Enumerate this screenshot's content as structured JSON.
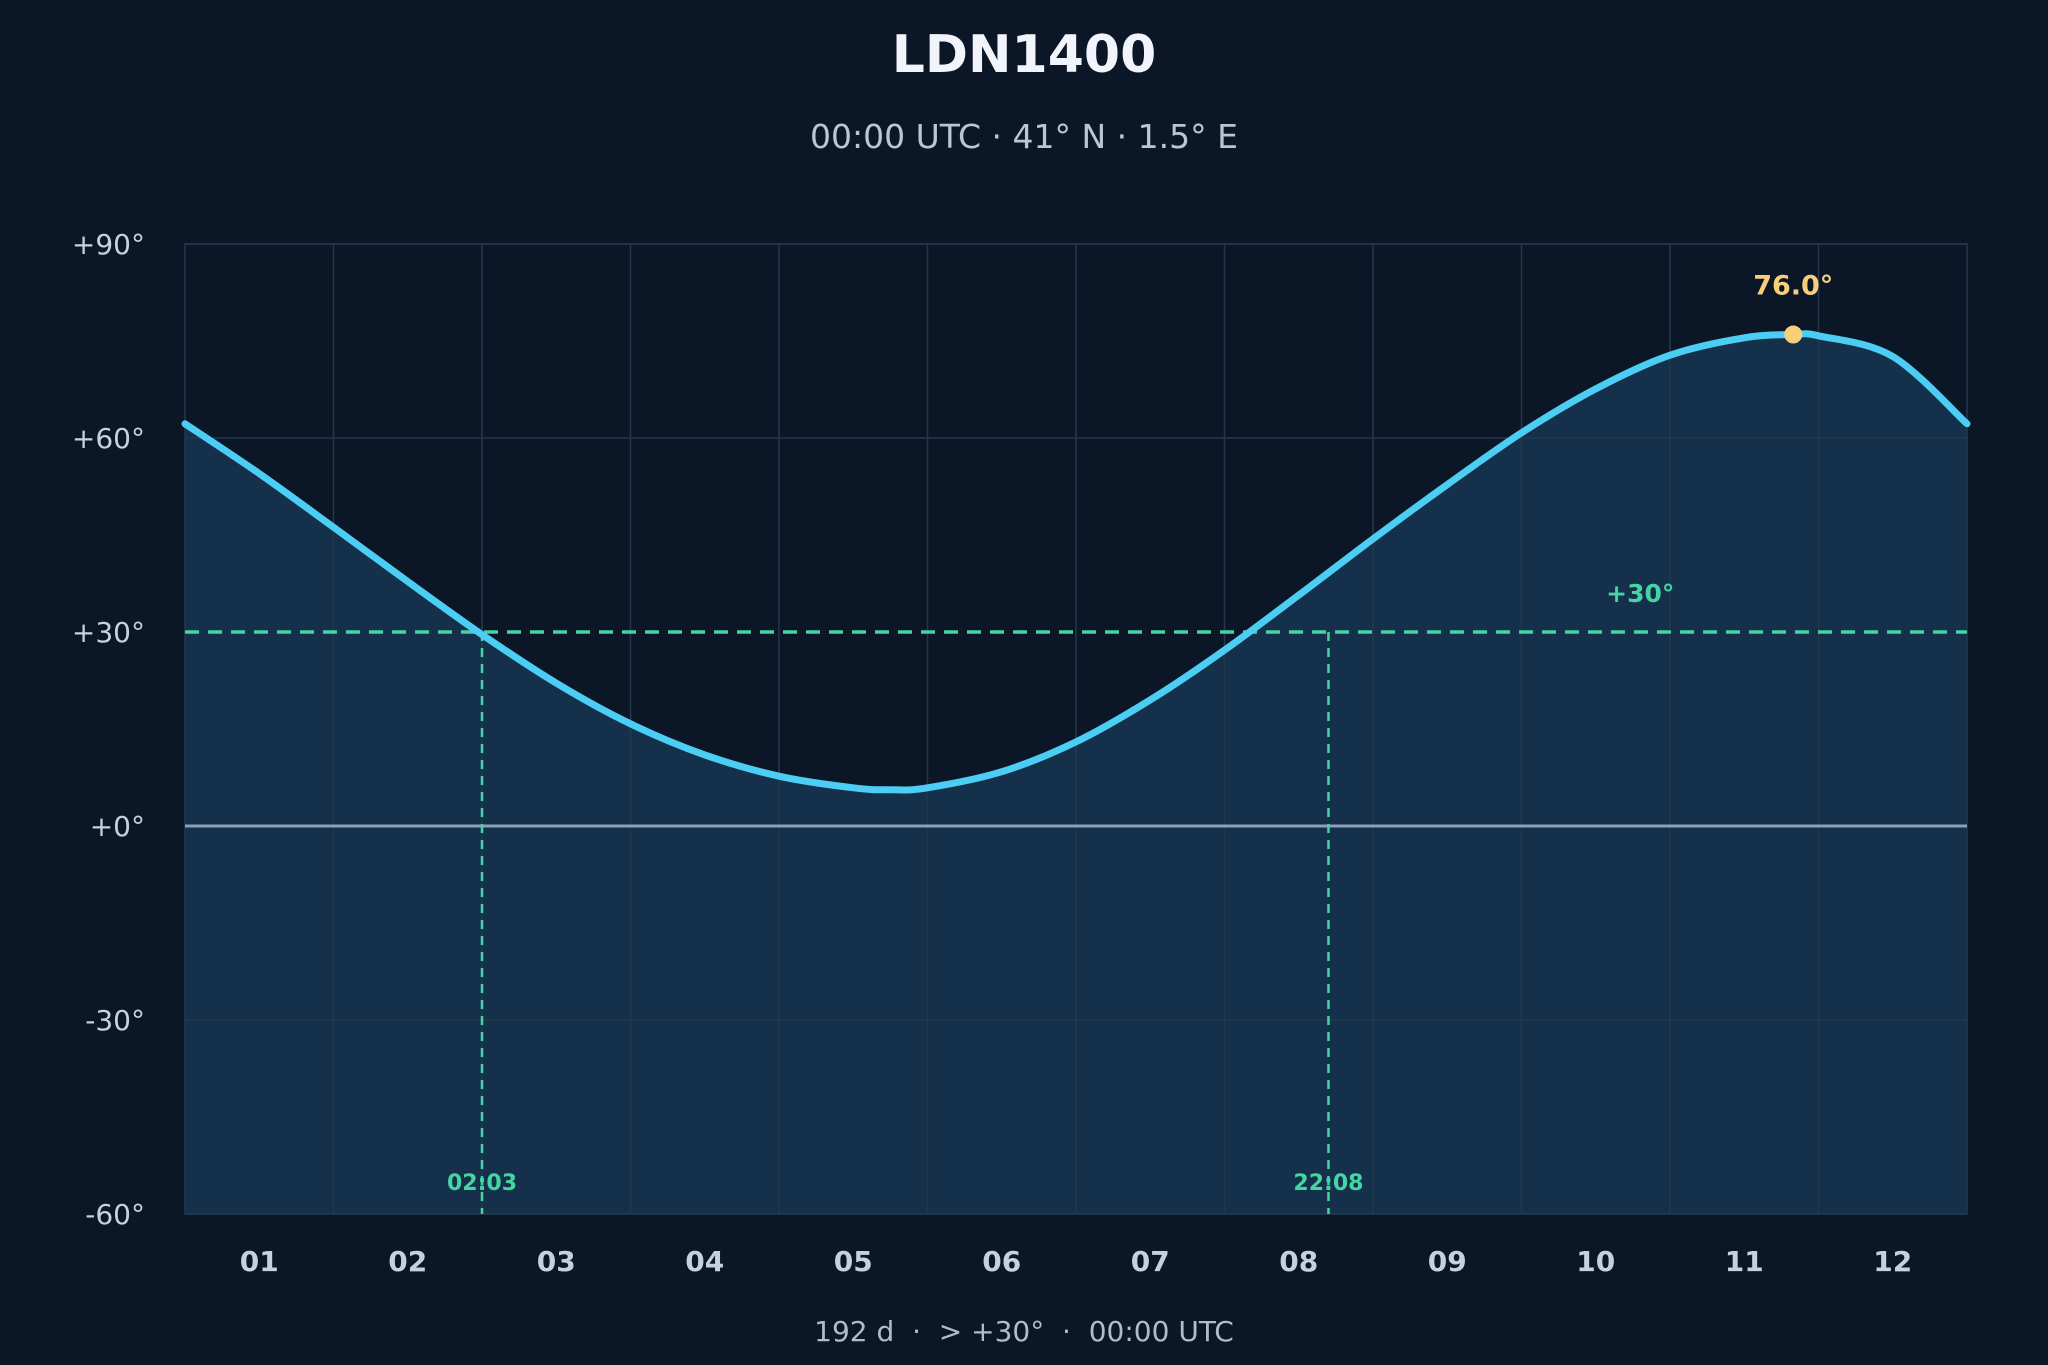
{
  "title": "LDN1400",
  "subtitle": "00:00 UTC · 41° N · 1.5° E",
  "footer": "192 d  ·  > +30°  ·  00:00 UTC",
  "chart_data": {
    "type": "area",
    "title": "LDN1400",
    "subtitle": "00:00 UTC · 41° N · 1.5° E",
    "xlabel": "",
    "ylabel": "",
    "ylim": [
      -60,
      90
    ],
    "xlim": [
      0.5,
      12.5
    ],
    "grid": true,
    "yticks": [
      90,
      60,
      30,
      0,
      -30,
      -60
    ],
    "ytick_labels": [
      "+90°",
      "+60°",
      "+30°",
      "+0°",
      "-30°",
      "-60°"
    ],
    "xtick_labels": [
      "01",
      "02",
      "03",
      "04",
      "05",
      "06",
      "07",
      "08",
      "09",
      "10",
      "11",
      "12"
    ],
    "series": [
      {
        "x": [
          0.5,
          1.0,
          1.5,
          2.0,
          2.5,
          3.0,
          3.5,
          4.0,
          4.5,
          5.0,
          5.25,
          5.5,
          6.0,
          6.5,
          7.0,
          7.5,
          8.0,
          8.5,
          9.0,
          9.5,
          10.0,
          10.5,
          11.0,
          11.33,
          11.5,
          12.0,
          12.5
        ],
        "values": [
          62.2,
          54.5,
          46.2,
          37.8,
          29.6,
          22.1,
          15.8,
          11.0,
          7.7,
          5.9,
          5.6,
          5.9,
          8.4,
          13.0,
          19.5,
          27.2,
          35.7,
          44.4,
          52.8,
          60.8,
          67.6,
          72.8,
          75.5,
          76.0,
          75.8,
          72.6,
          62.2
        ]
      }
    ],
    "threshold": {
      "value": 30,
      "label": "+30°"
    },
    "horizon": 0,
    "crossings": [
      {
        "x": 2.5,
        "label": "02:03"
      },
      {
        "x": 8.2,
        "label": "22:08"
      }
    ],
    "peak": {
      "x": 11.33,
      "value": 76.0,
      "label": "76.0°"
    },
    "colors": {
      "background": "#0b1627",
      "fill": "#15304a",
      "curve": "#4ccdf4",
      "threshold": "#45d4a3",
      "horizon": "#8aa2b8",
      "grid": "#24384d",
      "peak": "#f6cf78"
    }
  }
}
